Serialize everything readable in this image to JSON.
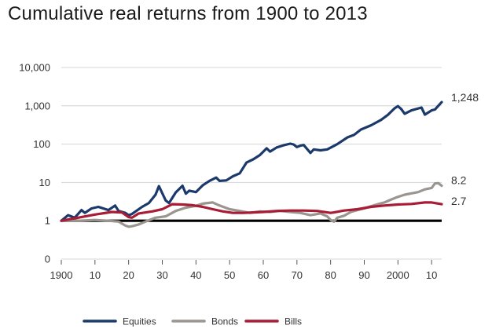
{
  "chart_data": {
    "type": "line",
    "title": "Cumulative real returns from 1900 to 2013",
    "xlabel": "",
    "ylabel": "",
    "y_scale": "log",
    "ylim": [
      0.1,
      10000
    ],
    "xlim": [
      1900,
      2013
    ],
    "y_ticks": [
      {
        "value": 10000,
        "label": "10,000"
      },
      {
        "value": 1000,
        "label": "1,000"
      },
      {
        "value": 100,
        "label": "100"
      },
      {
        "value": 10,
        "label": "10"
      },
      {
        "value": 1,
        "label": "1"
      },
      {
        "value": 0.1,
        "label": "0"
      }
    ],
    "x_ticks": [
      {
        "value": 1900,
        "label": "1900"
      },
      {
        "value": 1910,
        "label": "10"
      },
      {
        "value": 1920,
        "label": "20"
      },
      {
        "value": 1930,
        "label": "30"
      },
      {
        "value": 1940,
        "label": "40"
      },
      {
        "value": 1950,
        "label": "50"
      },
      {
        "value": 1960,
        "label": "60"
      },
      {
        "value": 1970,
        "label": "70"
      },
      {
        "value": 1980,
        "label": "80"
      },
      {
        "value": 1990,
        "label": "90"
      },
      {
        "value": 2000,
        "label": "2000"
      },
      {
        "value": 2010,
        "label": "10"
      }
    ],
    "grid": "horizontal",
    "baseline": 1,
    "legend_position": "bottom",
    "series": [
      {
        "name": "Equities",
        "color": "#1b3a6b",
        "end_label": "1,248",
        "x": [
          1900,
          1902,
          1904,
          1906,
          1907,
          1909,
          1911,
          1914,
          1916,
          1917,
          1919,
          1920,
          1921,
          1924,
          1926,
          1928,
          1929,
          1931,
          1932,
          1934,
          1936,
          1937,
          1938,
          1940,
          1942,
          1944,
          1946,
          1947,
          1949,
          1951,
          1953,
          1955,
          1957,
          1959,
          1961,
          1962,
          1964,
          1966,
          1968,
          1969,
          1970,
          1971,
          1972,
          1974,
          1975,
          1977,
          1979,
          1982,
          1985,
          1987,
          1989,
          1992,
          1995,
          1997,
          1999,
          2000,
          2001,
          2002,
          2004,
          2007,
          2008,
          2010,
          2011,
          2013
        ],
        "y": [
          1.0,
          1.4,
          1.2,
          1.9,
          1.6,
          2.1,
          2.3,
          1.9,
          2.5,
          1.8,
          1.6,
          1.4,
          1.5,
          2.3,
          2.9,
          4.8,
          8.0,
          3.4,
          2.9,
          5.5,
          8.2,
          5.1,
          6.1,
          5.6,
          8.4,
          11.0,
          13.4,
          11.0,
          11.3,
          14.5,
          17.3,
          33.0,
          40.0,
          52.0,
          78.0,
          64.0,
          82.0,
          93.0,
          103.0,
          98.0,
          84.0,
          91.0,
          95.0,
          59.0,
          73.0,
          69.0,
          73.0,
          100.0,
          150.0,
          175.0,
          240.0,
          310.0,
          430.0,
          580.0,
          860.0,
          980.0,
          820.0,
          620.0,
          760.0,
          900.0,
          590.0,
          760.0,
          800.0,
          1248.0
        ]
      },
      {
        "name": "Bonds",
        "color": "#9b9590",
        "end_label": "8.2",
        "x": [
          1900,
          1905,
          1910,
          1914,
          1917,
          1919,
          1920,
          1921,
          1923,
          1925,
          1928,
          1931,
          1932,
          1934,
          1937,
          1940,
          1942,
          1945,
          1947,
          1950,
          1953,
          1956,
          1959,
          1962,
          1965,
          1968,
          1971,
          1974,
          1977,
          1979,
          1980,
          1981,
          1982,
          1984,
          1986,
          1988,
          1990,
          1992,
          1994,
          1996,
          1998,
          2000,
          2002,
          2004,
          2006,
          2008,
          2010,
          2011,
          2012,
          2013
        ],
        "y": [
          1.0,
          1.0,
          1.05,
          1.0,
          0.95,
          0.75,
          0.7,
          0.72,
          0.8,
          0.95,
          1.2,
          1.3,
          1.45,
          1.8,
          2.2,
          2.45,
          2.8,
          3.0,
          2.5,
          2.0,
          1.8,
          1.6,
          1.75,
          1.7,
          1.8,
          1.7,
          1.6,
          1.4,
          1.55,
          1.3,
          1.05,
          0.95,
          1.2,
          1.35,
          1.7,
          1.9,
          2.1,
          2.4,
          2.7,
          3.0,
          3.6,
          4.2,
          4.8,
          5.2,
          5.6,
          6.6,
          7.2,
          9.4,
          9.6,
          8.2
        ]
      },
      {
        "name": "Bills",
        "color": "#a81c35",
        "end_label": "2.7",
        "x": [
          1900,
          1905,
          1910,
          1915,
          1918,
          1920,
          1921,
          1923,
          1927,
          1930,
          1933,
          1936,
          1939,
          1942,
          1945,
          1948,
          1951,
          1954,
          1957,
          1960,
          1964,
          1968,
          1972,
          1976,
          1980,
          1981,
          1984,
          1988,
          1992,
          1996,
          2000,
          2004,
          2008,
          2010,
          2013
        ],
        "y": [
          1.0,
          1.2,
          1.45,
          1.7,
          1.65,
          1.25,
          1.2,
          1.55,
          1.75,
          2.0,
          2.7,
          2.65,
          2.55,
          2.3,
          2.0,
          1.75,
          1.6,
          1.6,
          1.65,
          1.7,
          1.8,
          1.85,
          1.85,
          1.8,
          1.6,
          1.65,
          1.85,
          2.0,
          2.3,
          2.5,
          2.65,
          2.75,
          3.0,
          3.0,
          2.7
        ]
      }
    ]
  }
}
